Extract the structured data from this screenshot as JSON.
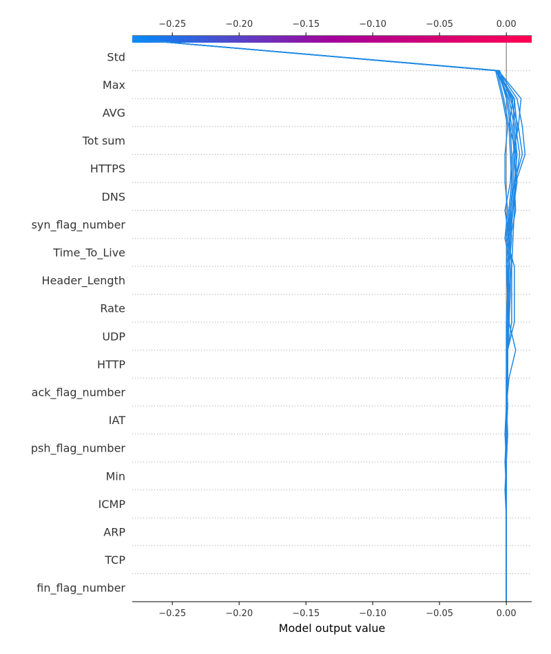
{
  "chart_data": {
    "type": "line",
    "subtype": "shap-decision-plot",
    "title": "",
    "xlabel": "Model output value",
    "ylabel": "",
    "xlim": [
      -0.28,
      0.019
    ],
    "x_ticks": [
      -0.25,
      -0.2,
      -0.15,
      -0.1,
      -0.05,
      0.0
    ],
    "x_tick_labels": [
      "−0.25",
      "−0.20",
      "−0.15",
      "−0.10",
      "−0.05",
      "0.00"
    ],
    "base_value": 0.0,
    "grid": "dotted horizontal row separators",
    "colorbar": {
      "position": "top",
      "from_color": "#008bfb",
      "via_color": "#a3039a",
      "to_color": "#ff0052"
    },
    "line_color": "#1e88e5",
    "base_line_color": "#808080",
    "features": [
      "Std",
      "Max",
      "AVG",
      "Tot sum",
      "HTTPS",
      "DNS",
      "syn_flag_number",
      "Time_To_Live",
      "Header_Length",
      "Rate",
      "UDP",
      "HTTP",
      "ack_flag_number",
      "IAT",
      "psh_flag_number",
      "Min",
      "ICMP",
      "ARP",
      "TCP",
      "fin_flag_number"
    ],
    "series": [
      {
        "values": [
          -0.28,
          -0.007,
          0.006,
          0.008,
          0.006,
          0.005,
          0.003,
          0.002,
          0.001,
          0.001,
          0.001,
          0.001,
          0.0,
          0.0,
          0.0,
          0.0,
          0.0,
          0.0,
          0.0,
          0.0,
          0.0
        ]
      },
      {
        "values": [
          -0.28,
          -0.006,
          0.008,
          0.012,
          0.014,
          0.007,
          0.005,
          0.003,
          0.002,
          0.002,
          0.001,
          0.001,
          0.001,
          0.0,
          0.001,
          0.0,
          0.0,
          0.0,
          0.0,
          0.0,
          0.0
        ]
      },
      {
        "values": [
          -0.28,
          -0.007,
          0.001,
          0.004,
          0.006,
          0.007,
          0.006,
          0.005,
          0.004,
          0.002,
          0.002,
          0.001,
          0.0,
          0.001,
          0.0,
          0.0,
          0.0,
          0.0,
          0.0,
          0.0,
          0.0
        ]
      },
      {
        "values": [
          -0.28,
          -0.008,
          -0.003,
          0.001,
          -0.001,
          -0.001,
          0.001,
          -0.001,
          0.003,
          0.003,
          0.002,
          0.001,
          0.001,
          0.0,
          0.001,
          0.0,
          0.0,
          0.0,
          0.0,
          0.0,
          0.0
        ]
      },
      {
        "values": [
          -0.28,
          -0.005,
          0.003,
          0.009,
          0.005,
          0.004,
          0.002,
          0.0,
          0.006,
          0.006,
          0.006,
          0.001,
          0.001,
          0.0,
          0.0,
          0.0,
          -0.001,
          0.0,
          0.0,
          0.0,
          0.0
        ]
      },
      {
        "values": [
          -0.28,
          -0.007,
          0.004,
          0.007,
          0.01,
          0.007,
          0.004,
          0.002,
          0.004,
          0.004,
          0.004,
          0.001,
          0.0,
          0.001,
          0.0,
          0.0,
          0.0,
          0.0,
          0.0,
          0.0,
          0.0
        ]
      },
      {
        "values": [
          -0.28,
          -0.006,
          0.0,
          0.003,
          0.004,
          0.003,
          -0.001,
          0.002,
          0.001,
          0.002,
          0.001,
          0.001,
          0.0,
          0.0,
          0.0,
          0.0,
          0.0,
          0.0,
          0.0,
          0.0,
          0.0
        ]
      },
      {
        "values": [
          -0.28,
          -0.007,
          0.002,
          0.006,
          0.008,
          0.006,
          0.003,
          0.004,
          0.002,
          0.001,
          0.002,
          0.007,
          0.002,
          0.0,
          0.0,
          0.0,
          0.0,
          0.0,
          0.0,
          0.0,
          0.0
        ]
      },
      {
        "values": [
          -0.28,
          -0.008,
          0.005,
          0.002,
          0.003,
          0.004,
          0.002,
          0.001,
          0.0,
          0.001,
          0.0,
          0.0,
          0.0,
          0.0,
          -0.001,
          0.0,
          0.0,
          0.0,
          0.0,
          0.0,
          0.0
        ]
      },
      {
        "values": [
          -0.28,
          -0.007,
          0.006,
          0.005,
          0.007,
          0.008,
          0.005,
          0.002,
          0.001,
          0.001,
          0.001,
          0.0,
          0.001,
          0.0,
          0.0,
          -0.001,
          0.0,
          0.0,
          0.0,
          0.0,
          0.0
        ]
      },
      {
        "values": [
          -0.28,
          -0.006,
          0.011,
          0.009,
          0.012,
          0.006,
          0.003,
          0.001,
          0.0,
          0.001,
          0.0,
          0.001,
          0.0,
          0.0,
          0.0,
          0.0,
          0.0,
          0.0,
          0.0,
          0.0,
          0.0
        ]
      },
      {
        "values": [
          -0.28,
          -0.007,
          -0.002,
          0.002,
          0.008,
          0.006,
          0.007,
          0.003,
          0.002,
          0.001,
          0.001,
          0.0,
          0.0,
          0.0,
          0.0,
          0.0,
          0.0,
          0.0,
          0.0,
          0.0,
          0.0
        ]
      }
    ]
  }
}
